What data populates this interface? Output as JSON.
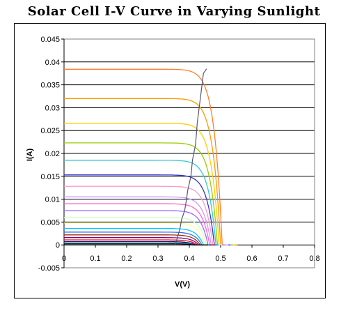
{
  "chart_data": {
    "type": "line",
    "title": "Solar Cell I-V Curve in Varying Sunlight",
    "xlabel": "V(V)",
    "ylabel": "I(A)",
    "xlim": [
      0,
      0.8
    ],
    "ylim": [
      -0.005,
      0.045
    ],
    "xticks": [
      0,
      0.1,
      0.2,
      0.3,
      0.4,
      0.5,
      0.6,
      0.7,
      0.8
    ],
    "yticks": [
      -0.005,
      0,
      0.005,
      0.01,
      0.015,
      0.02,
      0.025,
      0.03,
      0.035,
      0.04,
      0.045
    ],
    "grid": "horizontal",
    "legend": "none",
    "curves": [
      {
        "isc": 0.0384,
        "voc": 0.505,
        "color": "#ff7f27"
      },
      {
        "isc": 0.032,
        "voc": 0.5,
        "color": "#ff9900"
      },
      {
        "isc": 0.0266,
        "voc": 0.495,
        "color": "#ffcc00"
      },
      {
        "isc": 0.0223,
        "voc": 0.49,
        "color": "#99cc00"
      },
      {
        "isc": 0.0185,
        "voc": 0.485,
        "color": "#33cccc"
      },
      {
        "isc": 0.0153,
        "voc": 0.48,
        "color": "#3333cc"
      },
      {
        "isc": 0.0128,
        "voc": 0.475,
        "color": "#ff99cc"
      },
      {
        "isc": 0.0105,
        "voc": 0.47,
        "color": "#cc99ff"
      },
      {
        "isc": 0.009,
        "voc": 0.465,
        "color": "#ff66cc"
      },
      {
        "isc": 0.0075,
        "voc": 0.46,
        "color": "#9966ff"
      },
      {
        "isc": 0.006,
        "voc": 0.455,
        "color": "#ccffcc"
      },
      {
        "isc": 0.0048,
        "voc": 0.45,
        "color": "#ffff99"
      },
      {
        "isc": 0.0036,
        "voc": 0.445,
        "color": "#00ccff"
      },
      {
        "isc": 0.0028,
        "voc": 0.44,
        "color": "#3366ff"
      },
      {
        "isc": 0.0022,
        "voc": 0.435,
        "color": "#993300"
      },
      {
        "isc": 0.0016,
        "voc": 0.43,
        "color": "#800080"
      },
      {
        "isc": 0.0011,
        "voc": 0.425,
        "color": "#ff0000"
      },
      {
        "isc": 0.0007,
        "voc": 0.42,
        "color": "#000080"
      },
      {
        "isc": 0.0004,
        "voc": 0.415,
        "color": "#008080"
      },
      {
        "isc": 0.0002,
        "voc": 0.41,
        "color": "#000000"
      }
    ],
    "mpp_line": {
      "color": "#555577",
      "points": [
        [
          0.355,
          0
        ],
        [
          0.37,
          0.0035
        ],
        [
          0.375,
          0.0055
        ],
        [
          0.385,
          0.0075
        ],
        [
          0.39,
          0.0095
        ],
        [
          0.395,
          0.012
        ],
        [
          0.405,
          0.015
        ],
        [
          0.41,
          0.0185
        ],
        [
          0.42,
          0.022
        ],
        [
          0.425,
          0.0265
        ],
        [
          0.435,
          0.032
        ],
        [
          0.445,
          0.0375
        ],
        [
          0.455,
          0.0385
        ]
      ]
    }
  }
}
